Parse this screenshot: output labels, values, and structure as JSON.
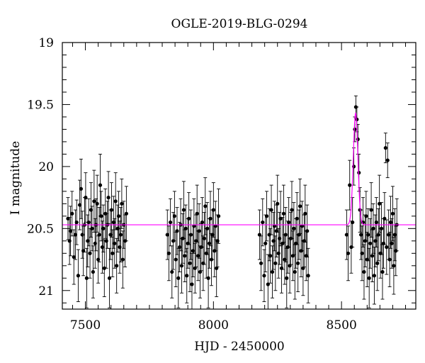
{
  "chart_data": {
    "type": "scatter",
    "title": "OGLE-2019-BLG-0294",
    "xlabel": "HJD - 2450000",
    "ylabel": "I magnitude",
    "xlim": [
      7410,
      8790
    ],
    "ylim": [
      19,
      21.15
    ],
    "y_inverted": true,
    "xticks": [
      7500,
      8000,
      8500
    ],
    "yticks": [
      19,
      19.5,
      20,
      20.5,
      21
    ],
    "xtick_labels": [
      "7500",
      "8000",
      "8500"
    ],
    "ytick_labels": [
      "19",
      "19.5",
      "20",
      "20.5",
      "21"
    ],
    "grid": false,
    "colors": {
      "points": "#000000",
      "errorbars": "#000000",
      "model": "#ff00ff",
      "frame": "#000000"
    },
    "model": {
      "name": "",
      "baseline": 20.47,
      "peak_time": 8555,
      "peak_mag": 19.57,
      "tE": 9
    },
    "observations": [
      [
        7432,
        20.42,
        0.17
      ],
      [
        7438,
        20.6,
        0.19
      ],
      [
        7442,
        20.52,
        0.2
      ],
      [
        7448,
        20.38,
        0.18
      ],
      [
        7455,
        20.73,
        0.22
      ],
      [
        7461,
        20.55,
        0.2
      ],
      [
        7466,
        20.45,
        0.18
      ],
      [
        7472,
        20.88,
        0.21
      ],
      [
        7478,
        20.31,
        0.2
      ],
      [
        7483,
        20.18,
        0.24
      ],
      [
        7488,
        20.55,
        0.19
      ],
      [
        7492,
        20.68,
        0.2
      ],
      [
        7497,
        20.47,
        0.22
      ],
      [
        7501,
        20.25,
        0.2
      ],
      [
        7505,
        20.9,
        0.24
      ],
      [
        7509,
        20.6,
        0.21
      ],
      [
        7513,
        20.45,
        0.19
      ],
      [
        7518,
        20.7,
        0.2
      ],
      [
        7522,
        20.35,
        0.22
      ],
      [
        7526,
        20.5,
        0.18
      ],
      [
        7530,
        20.85,
        0.21
      ],
      [
        7534,
        20.28,
        0.25
      ],
      [
        7538,
        20.62,
        0.2
      ],
      [
        7542,
        20.47,
        0.21
      ],
      [
        7546,
        20.3,
        0.23
      ],
      [
        7550,
        20.75,
        0.19
      ],
      [
        7554,
        20.55,
        0.22
      ],
      [
        7558,
        20.15,
        0.25
      ],
      [
        7562,
        20.4,
        0.2
      ],
      [
        7566,
        20.65,
        0.21
      ],
      [
        7570,
        20.5,
        0.19
      ],
      [
        7574,
        20.82,
        0.23
      ],
      [
        7578,
        20.38,
        0.2
      ],
      [
        7582,
        20.6,
        0.22
      ],
      [
        7586,
        20.47,
        0.19
      ],
      [
        7590,
        20.25,
        0.21
      ],
      [
        7594,
        20.9,
        0.24
      ],
      [
        7598,
        20.55,
        0.2
      ],
      [
        7602,
        20.35,
        0.22
      ],
      [
        7606,
        20.7,
        0.19
      ],
      [
        7610,
        20.45,
        0.21
      ],
      [
        7614,
        20.62,
        0.2
      ],
      [
        7618,
        20.28,
        0.23
      ],
      [
        7622,
        20.8,
        0.22
      ],
      [
        7626,
        20.5,
        0.19
      ],
      [
        7630,
        20.4,
        0.2
      ],
      [
        7634,
        20.65,
        0.21
      ],
      [
        7638,
        20.55,
        0.22
      ],
      [
        7642,
        20.3,
        0.2
      ],
      [
        7646,
        20.75,
        0.23
      ],
      [
        7650,
        20.47,
        0.19
      ],
      [
        7655,
        20.6,
        0.21
      ],
      [
        7660,
        20.38,
        0.22
      ],
      [
        7820,
        20.55,
        0.2
      ],
      [
        7826,
        20.7,
        0.22
      ],
      [
        7832,
        20.45,
        0.19
      ],
      [
        7838,
        20.85,
        0.21
      ],
      [
        7843,
        20.6,
        0.23
      ],
      [
        7848,
        20.4,
        0.2
      ],
      [
        7853,
        20.75,
        0.22
      ],
      [
        7858,
        20.52,
        0.19
      ],
      [
        7863,
        20.9,
        0.24
      ],
      [
        7868,
        20.65,
        0.2
      ],
      [
        7872,
        20.47,
        0.21
      ],
      [
        7876,
        20.8,
        0.22
      ],
      [
        7880,
        20.58,
        0.2
      ],
      [
        7884,
        20.35,
        0.23
      ],
      [
        7888,
        20.72,
        0.21
      ],
      [
        7892,
        20.5,
        0.19
      ],
      [
        7896,
        20.88,
        0.22
      ],
      [
        7900,
        20.62,
        0.2
      ],
      [
        7904,
        20.42,
        0.21
      ],
      [
        7908,
        20.78,
        0.23
      ],
      [
        7912,
        20.55,
        0.2
      ],
      [
        7916,
        20.95,
        0.25
      ],
      [
        7920,
        20.68,
        0.21
      ],
      [
        7924,
        20.48,
        0.22
      ],
      [
        7928,
        20.82,
        0.2
      ],
      [
        7932,
        20.6,
        0.21
      ],
      [
        7936,
        20.38,
        0.23
      ],
      [
        7940,
        20.72,
        0.2
      ],
      [
        7944,
        20.52,
        0.22
      ],
      [
        7948,
        20.85,
        0.21
      ],
      [
        7952,
        20.65,
        0.19
      ],
      [
        7956,
        20.45,
        0.2
      ],
      [
        7960,
        20.78,
        0.22
      ],
      [
        7964,
        20.58,
        0.21
      ],
      [
        7968,
        20.32,
        0.23
      ],
      [
        7972,
        20.7,
        0.2
      ],
      [
        7976,
        20.5,
        0.21
      ],
      [
        7980,
        20.9,
        0.24
      ],
      [
        7984,
        20.62,
        0.2
      ],
      [
        7988,
        20.42,
        0.22
      ],
      [
        7992,
        20.75,
        0.21
      ],
      [
        7996,
        20.55,
        0.2
      ],
      [
        8000,
        20.35,
        0.22
      ],
      [
        8004,
        20.68,
        0.21
      ],
      [
        8008,
        20.48,
        0.2
      ],
      [
        8012,
        20.82,
        0.23
      ],
      [
        8016,
        20.6,
        0.21
      ],
      [
        8020,
        20.4,
        0.22
      ],
      [
        8180,
        20.55,
        0.2
      ],
      [
        8186,
        20.78,
        0.22
      ],
      [
        8192,
        20.45,
        0.19
      ],
      [
        8198,
        20.88,
        0.21
      ],
      [
        8203,
        20.62,
        0.23
      ],
      [
        8208,
        20.4,
        0.2
      ],
      [
        8213,
        20.95,
        0.24
      ],
      [
        8218,
        20.55,
        0.21
      ],
      [
        8222,
        20.72,
        0.22
      ],
      [
        8226,
        20.35,
        0.2
      ],
      [
        8230,
        20.85,
        0.21
      ],
      [
        8234,
        20.6,
        0.23
      ],
      [
        8238,
        20.48,
        0.2
      ],
      [
        8242,
        20.78,
        0.22
      ],
      [
        8246,
        20.52,
        0.21
      ],
      [
        8250,
        20.3,
        0.23
      ],
      [
        8254,
        20.7,
        0.2
      ],
      [
        8258,
        20.58,
        0.21
      ],
      [
        8262,
        20.42,
        0.22
      ],
      [
        8266,
        20.82,
        0.2
      ],
      [
        8270,
        20.62,
        0.21
      ],
      [
        8274,
        20.38,
        0.23
      ],
      [
        8278,
        20.75,
        0.2
      ],
      [
        8282,
        20.55,
        0.22
      ],
      [
        8286,
        20.9,
        0.24
      ],
      [
        8290,
        20.65,
        0.21
      ],
      [
        8294,
        20.45,
        0.2
      ],
      [
        8298,
        20.8,
        0.22
      ],
      [
        8302,
        20.58,
        0.21
      ],
      [
        8306,
        20.35,
        0.23
      ],
      [
        8310,
        20.72,
        0.2
      ],
      [
        8314,
        20.5,
        0.21
      ],
      [
        8318,
        20.85,
        0.22
      ],
      [
        8322,
        20.62,
        0.2
      ],
      [
        8326,
        20.42,
        0.21
      ],
      [
        8330,
        20.78,
        0.23
      ],
      [
        8334,
        20.55,
        0.2
      ],
      [
        8338,
        20.32,
        0.22
      ],
      [
        8342,
        20.68,
        0.21
      ],
      [
        8346,
        20.48,
        0.2
      ],
      [
        8350,
        20.82,
        0.22
      ],
      [
        8354,
        20.6,
        0.21
      ],
      [
        8358,
        20.38,
        0.23
      ],
      [
        8362,
        20.72,
        0.2
      ],
      [
        8366,
        20.52,
        0.21
      ],
      [
        8370,
        20.88,
        0.22
      ],
      [
        8520,
        20.55,
        0.2
      ],
      [
        8526,
        20.7,
        0.22
      ],
      [
        8532,
        20.15,
        0.2
      ],
      [
        8538,
        20.65,
        0.21
      ],
      [
        8543,
        20.45,
        0.2
      ],
      [
        8548,
        20.0,
        0.15
      ],
      [
        8552,
        19.7,
        0.1
      ],
      [
        8556,
        19.52,
        0.09
      ],
      [
        8560,
        19.62,
        0.1
      ],
      [
        8564,
        19.78,
        0.12
      ],
      [
        8568,
        20.05,
        0.15
      ],
      [
        8572,
        20.35,
        0.18
      ],
      [
        8576,
        20.55,
        0.2
      ],
      [
        8580,
        20.7,
        0.22
      ],
      [
        8584,
        20.45,
        0.2
      ],
      [
        8588,
        20.85,
        0.22
      ],
      [
        8592,
        20.6,
        0.21
      ],
      [
        8596,
        20.4,
        0.2
      ],
      [
        8600,
        20.75,
        0.22
      ],
      [
        8604,
        20.55,
        0.21
      ],
      [
        8608,
        20.9,
        0.24
      ],
      [
        8612,
        20.62,
        0.2
      ],
      [
        8616,
        20.35,
        0.22
      ],
      [
        8620,
        20.72,
        0.21
      ],
      [
        8624,
        20.5,
        0.2
      ],
      [
        8628,
        20.88,
        0.23
      ],
      [
        8632,
        20.6,
        0.21
      ],
      [
        8636,
        20.45,
        0.2
      ],
      [
        8640,
        20.78,
        0.22
      ],
      [
        8644,
        20.55,
        0.21
      ],
      [
        8648,
        20.3,
        0.23
      ],
      [
        8652,
        20.7,
        0.2
      ],
      [
        8656,
        20.5,
        0.21
      ],
      [
        8660,
        20.85,
        0.22
      ],
      [
        8664,
        20.62,
        0.2
      ],
      [
        8668,
        20.42,
        0.21
      ],
      [
        8672,
        19.85,
        0.12
      ],
      [
        8676,
        20.65,
        0.22
      ],
      [
        8680,
        19.95,
        0.14
      ],
      [
        8684,
        20.55,
        0.2
      ],
      [
        8688,
        20.75,
        0.22
      ],
      [
        8692,
        20.45,
        0.21
      ],
      [
        8696,
        20.62,
        0.2
      ],
      [
        8700,
        20.38,
        0.22
      ],
      [
        8704,
        20.8,
        0.23
      ],
      [
        8708,
        20.55,
        0.21
      ],
      [
        8712,
        20.68,
        0.2
      ],
      [
        8716,
        20.47,
        0.21
      ]
    ]
  }
}
